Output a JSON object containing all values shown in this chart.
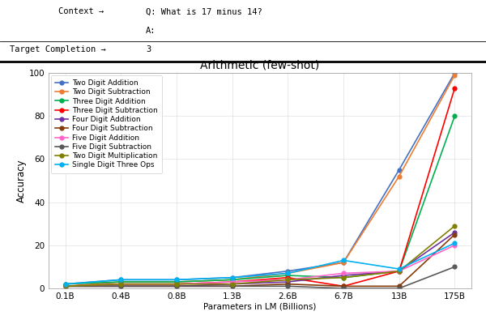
{
  "title": "Arithmetic (few-shot)",
  "xlabel": "Parameters in LM (Billions)",
  "ylabel": "Accuracy",
  "x_labels": [
    "0.1B",
    "0.4B",
    "0.8B",
    "1.3B",
    "2.6B",
    "6.7B",
    "13B",
    "175B"
  ],
  "series": [
    {
      "label": "Two Digit Addition",
      "color": "#4472c4",
      "values": [
        2,
        4,
        4,
        5,
        8,
        12,
        55,
        100
      ]
    },
    {
      "label": "Two Digit Subtraction",
      "color": "#ed7d31",
      "values": [
        1,
        3,
        3,
        4,
        7,
        12,
        52,
        99
      ]
    },
    {
      "label": "Three Digit Addition",
      "color": "#00b050",
      "values": [
        2,
        3,
        3,
        4,
        6,
        5,
        8,
        80
      ]
    },
    {
      "label": "Three Digit Subtraction",
      "color": "#ff0000",
      "values": [
        1,
        2,
        2,
        3,
        5,
        1,
        8,
        93
      ]
    },
    {
      "label": "Four Digit Addition",
      "color": "#7030a0",
      "values": [
        1,
        1,
        1,
        2,
        3,
        6,
        8,
        26
      ]
    },
    {
      "label": "Four Digit Subtraction",
      "color": "#843c0c",
      "values": [
        1,
        1,
        1,
        1,
        2,
        1,
        1,
        25
      ]
    },
    {
      "label": "Five Digit Addition",
      "color": "#ff66cc",
      "values": [
        1,
        2,
        2,
        3,
        4,
        7,
        8,
        20
      ]
    },
    {
      "label": "Five Digit Subtraction",
      "color": "#595959",
      "values": [
        1,
        1,
        1,
        1,
        1,
        0,
        0,
        10
      ]
    },
    {
      "label": "Two Digit Multiplication",
      "color": "#808000",
      "values": [
        1,
        2,
        2,
        2,
        4,
        5,
        8,
        29
      ]
    },
    {
      "label": "Single Digit Three Ops",
      "color": "#00b0f0",
      "values": [
        2,
        4,
        4,
        5,
        7,
        13,
        9,
        21
      ]
    }
  ],
  "ylim": [
    0,
    100
  ],
  "bg": "#ffffff",
  "context_label": "Context →",
  "context_q": "Q: What is 17 minus 14?",
  "context_a": "A:",
  "target_label": "Target Completion →",
  "target_val": "3"
}
